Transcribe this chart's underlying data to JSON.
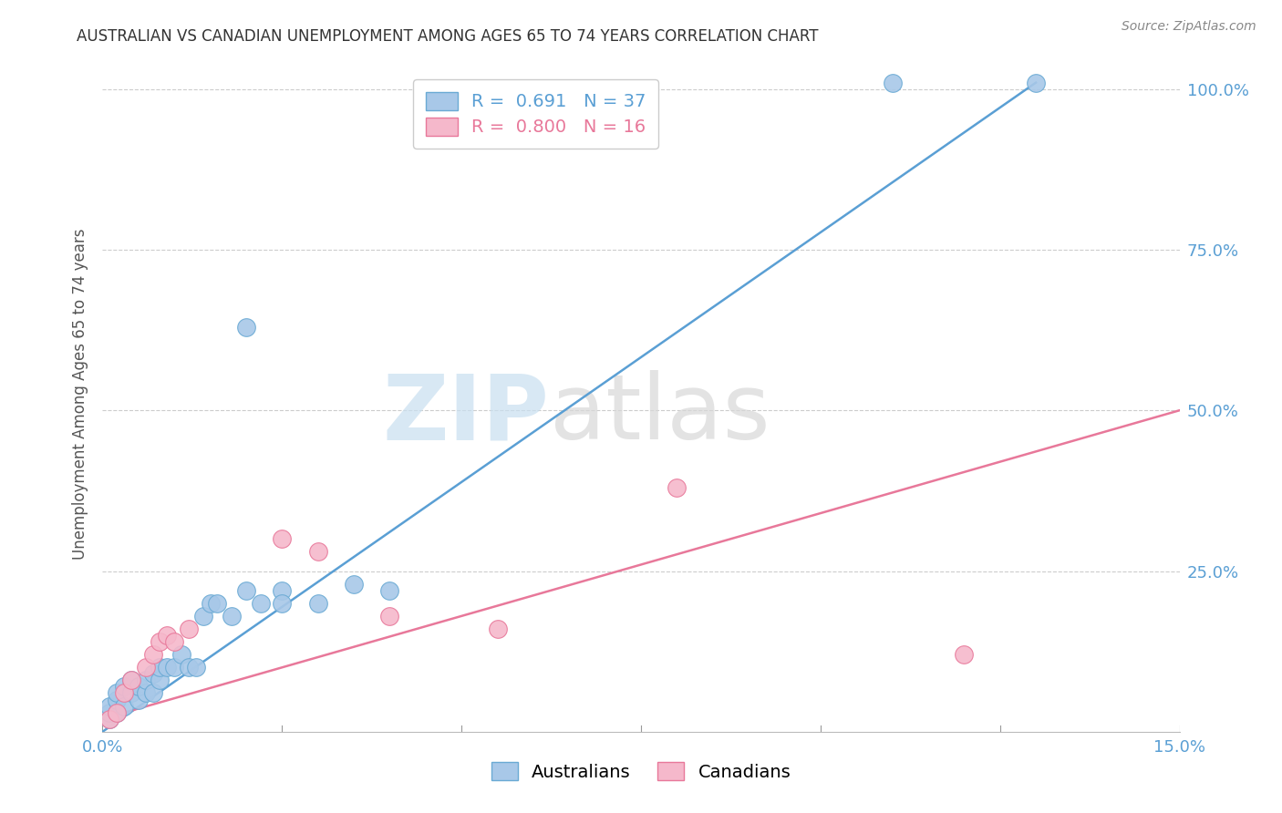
{
  "title": "AUSTRALIAN VS CANADIAN UNEMPLOYMENT AMONG AGES 65 TO 74 YEARS CORRELATION CHART",
  "source": "Source: ZipAtlas.com",
  "ylabel": "Unemployment Among Ages 65 to 74 years",
  "xmin": 0.0,
  "xmax": 0.15,
  "ymin": 0.0,
  "ymax": 1.05,
  "x_ticks": [
    0.0,
    0.025,
    0.05,
    0.075,
    0.1,
    0.125,
    0.15
  ],
  "x_tick_labels": [
    "0.0%",
    "",
    "",
    "",
    "",
    "",
    "15.0%"
  ],
  "y_ticks": [
    0.25,
    0.5,
    0.75,
    1.0
  ],
  "y_tick_labels": [
    "25.0%",
    "50.0%",
    "75.0%",
    "100.0%"
  ],
  "aus_R": "0.691",
  "aus_N": 37,
  "can_R": "0.800",
  "can_N": 16,
  "aus_color": "#a8c8e8",
  "can_color": "#f5b8cb",
  "aus_edge_color": "#6aaad4",
  "can_edge_color": "#e8789a",
  "aus_line_color": "#5a9fd4",
  "can_line_color": "#e8789a",
  "watermark_zip_color": "#c8dff0",
  "watermark_atlas_color": "#d8d8d8",
  "aus_scatter_x": [
    0.001,
    0.001,
    0.001,
    0.002,
    0.002,
    0.002,
    0.003,
    0.003,
    0.004,
    0.004,
    0.005,
    0.005,
    0.006,
    0.006,
    0.007,
    0.007,
    0.008,
    0.008,
    0.009,
    0.01,
    0.011,
    0.012,
    0.013,
    0.014,
    0.015,
    0.016,
    0.018,
    0.02,
    0.022,
    0.025,
    0.025,
    0.03,
    0.035,
    0.04,
    0.02,
    0.11,
    0.13
  ],
  "aus_scatter_y": [
    0.02,
    0.03,
    0.04,
    0.03,
    0.05,
    0.06,
    0.04,
    0.07,
    0.06,
    0.08,
    0.05,
    0.07,
    0.06,
    0.08,
    0.06,
    0.09,
    0.08,
    0.1,
    0.1,
    0.1,
    0.12,
    0.1,
    0.1,
    0.18,
    0.2,
    0.2,
    0.18,
    0.22,
    0.2,
    0.22,
    0.2,
    0.2,
    0.23,
    0.22,
    0.63,
    1.01,
    1.01
  ],
  "can_scatter_x": [
    0.001,
    0.002,
    0.003,
    0.004,
    0.006,
    0.007,
    0.008,
    0.009,
    0.01,
    0.012,
    0.025,
    0.03,
    0.04,
    0.055,
    0.08,
    0.12
  ],
  "can_scatter_y": [
    0.02,
    0.03,
    0.06,
    0.08,
    0.1,
    0.12,
    0.14,
    0.15,
    0.14,
    0.16,
    0.3,
    0.28,
    0.18,
    0.16,
    0.38,
    0.12
  ],
  "aus_line_x": [
    0.0,
    0.13
  ],
  "aus_line_y": [
    0.0,
    1.01
  ],
  "can_line_x": [
    0.0,
    0.15
  ],
  "can_line_y": [
    0.02,
    0.5
  ]
}
